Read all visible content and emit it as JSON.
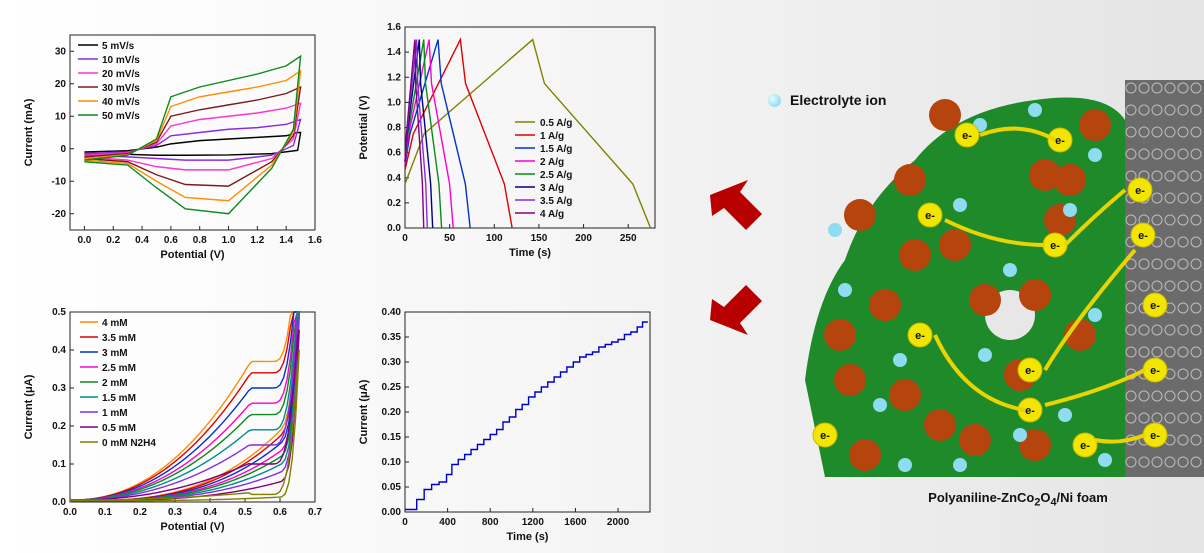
{
  "charts": [
    {
      "type": "line",
      "xlabel": "Potential (V)",
      "ylabel": "Current (mA)",
      "xlim": [
        -0.1,
        1.6
      ],
      "ylim": [
        -25,
        35
      ],
      "xticks": [
        0.0,
        0.2,
        0.4,
        0.6,
        0.8,
        1.0,
        1.2,
        1.4,
        1.6
      ],
      "yticks": [
        -20,
        -10,
        0,
        10,
        20,
        30
      ],
      "xtick_labels": [
        "0.0",
        "0.2",
        "0.4",
        "0.6",
        "0.8",
        "1.0",
        "1.2",
        "1.4",
        "1.6"
      ],
      "ytick_labels": [
        "-20",
        "-10",
        "0",
        "10",
        "20",
        "30"
      ],
      "legend_position": "top-left",
      "series": [
        {
          "name": "5 mV/s",
          "color": "#000000",
          "anodic": [
            [
              0,
              -1
            ],
            [
              0.3,
              -0.6
            ],
            [
              0.5,
              0.5
            ],
            [
              0.6,
              1.5
            ],
            [
              0.8,
              2.5
            ],
            [
              1.0,
              3.0
            ],
            [
              1.2,
              3.5
            ],
            [
              1.4,
              4.0
            ],
            [
              1.48,
              5.0
            ],
            [
              1.5,
              5
            ]
          ],
          "cathodic": [
            [
              1.5,
              5
            ],
            [
              1.48,
              -0.5
            ],
            [
              1.3,
              -1.5
            ],
            [
              1.0,
              -1.9
            ],
            [
              0.7,
              -2.0
            ],
            [
              0.5,
              -2.0
            ],
            [
              0.3,
              -1.7
            ],
            [
              0,
              -1.5
            ]
          ]
        },
        {
          "name": "10 mV/s",
          "color": "#8a2be2",
          "anodic": [
            [
              0,
              -1.5
            ],
            [
              0.3,
              -1
            ],
            [
              0.5,
              1
            ],
            [
              0.6,
              4
            ],
            [
              0.8,
              5
            ],
            [
              1.0,
              6
            ],
            [
              1.2,
              6.5
            ],
            [
              1.4,
              7.5
            ],
            [
              1.5,
              9
            ]
          ],
          "cathodic": [
            [
              1.5,
              9
            ],
            [
              1.45,
              1
            ],
            [
              1.3,
              -2
            ],
            [
              1.0,
              -3.5
            ],
            [
              0.7,
              -3.5
            ],
            [
              0.5,
              -3
            ],
            [
              0.3,
              -2.5
            ],
            [
              0,
              -2
            ]
          ]
        },
        {
          "name": "20 mV/s",
          "color": "#ff33cc",
          "anodic": [
            [
              0,
              -2
            ],
            [
              0.3,
              -1.2
            ],
            [
              0.5,
              1.5
            ],
            [
              0.6,
              7
            ],
            [
              0.8,
              9
            ],
            [
              1.0,
              10
            ],
            [
              1.2,
              11
            ],
            [
              1.4,
              12.5
            ],
            [
              1.5,
              14
            ]
          ],
          "cathodic": [
            [
              1.5,
              14
            ],
            [
              1.45,
              3
            ],
            [
              1.3,
              -3
            ],
            [
              1.0,
              -6.5
            ],
            [
              0.7,
              -6.5
            ],
            [
              0.5,
              -5.5
            ],
            [
              0.3,
              -3.5
            ],
            [
              0,
              -2.5
            ]
          ]
        },
        {
          "name": "30 mV/s",
          "color": "#7b1a1a",
          "anodic": [
            [
              0,
              -2.5
            ],
            [
              0.3,
              -1.5
            ],
            [
              0.5,
              2
            ],
            [
              0.6,
              10
            ],
            [
              0.8,
              12
            ],
            [
              1.0,
              13.5
            ],
            [
              1.2,
              15
            ],
            [
              1.4,
              17
            ],
            [
              1.5,
              19
            ]
          ],
          "cathodic": [
            [
              1.5,
              19
            ],
            [
              1.45,
              4
            ],
            [
              1.3,
              -4
            ],
            [
              1.0,
              -11.5
            ],
            [
              0.7,
              -11
            ],
            [
              0.5,
              -8
            ],
            [
              0.3,
              -4
            ],
            [
              0,
              -3
            ]
          ]
        },
        {
          "name": "40 mV/s",
          "color": "#ff8c00",
          "anodic": [
            [
              0,
              -3
            ],
            [
              0.3,
              -1.8
            ],
            [
              0.5,
              2.5
            ],
            [
              0.6,
              13
            ],
            [
              0.8,
              16
            ],
            [
              1.0,
              17.5
            ],
            [
              1.2,
              19
            ],
            [
              1.4,
              21
            ],
            [
              1.5,
              24
            ]
          ],
          "cathodic": [
            [
              1.5,
              24
            ],
            [
              1.45,
              5
            ],
            [
              1.3,
              -5
            ],
            [
              1.0,
              -16
            ],
            [
              0.7,
              -15
            ],
            [
              0.5,
              -10
            ],
            [
              0.3,
              -4.5
            ],
            [
              0,
              -3.5
            ]
          ]
        },
        {
          "name": "50 mV/s",
          "color": "#0a8a1a",
          "anodic": [
            [
              0,
              -3.5
            ],
            [
              0.3,
              -2
            ],
            [
              0.5,
              3
            ],
            [
              0.6,
              16
            ],
            [
              0.8,
              19
            ],
            [
              1.0,
              21
            ],
            [
              1.2,
              23
            ],
            [
              1.4,
              25.5
            ],
            [
              1.5,
              28.5
            ]
          ],
          "cathodic": [
            [
              1.5,
              28.5
            ],
            [
              1.45,
              6
            ],
            [
              1.3,
              -6
            ],
            [
              1.0,
              -20
            ],
            [
              0.7,
              -18.5
            ],
            [
              0.5,
              -12
            ],
            [
              0.3,
              -5
            ],
            [
              0,
              -4
            ]
          ]
        }
      ]
    },
    {
      "type": "line",
      "xlabel": "Time (s)",
      "ylabel": "Potential (V)",
      "xlim": [
        0,
        280
      ],
      "ylim": [
        0,
        1.6
      ],
      "xticks": [
        0,
        50,
        100,
        150,
        200,
        250
      ],
      "yticks": [
        0.0,
        0.2,
        0.4,
        0.6,
        0.8,
        1.0,
        1.2,
        1.4,
        1.6
      ],
      "xtick_labels": [
        "0",
        "50",
        "100",
        "150",
        "200",
        "250"
      ],
      "ytick_labels": [
        "0.0",
        "0.2",
        "0.4",
        "0.6",
        "0.8",
        "1.0",
        "1.2",
        "1.4",
        "1.6"
      ],
      "legend_position": "bottom-right",
      "series": [
        {
          "name": "0.5 A/g",
          "color": "#808000",
          "peak": 143,
          "end": 275
        },
        {
          "name": "1 A/g",
          "color": "#e00000",
          "peak": 62,
          "end": 120
        },
        {
          "name": "1.5 A/g",
          "color": "#0033cc",
          "peak": 37,
          "end": 73
        },
        {
          "name": "2 A/g",
          "color": "#ff00cc",
          "peak": 27,
          "end": 54
        },
        {
          "name": "2.5 A/g",
          "color": "#0a8a1a",
          "peak": 21,
          "end": 41
        },
        {
          "name": "3 A/g",
          "color": "#000080",
          "peak": 16,
          "end": 31
        },
        {
          "name": "3.5 A/g",
          "color": "#8a2be2",
          "peak": 13,
          "end": 25
        },
        {
          "name": "4 A/g",
          "color": "#800080",
          "peak": 11,
          "end": 21
        }
      ]
    },
    {
      "type": "line",
      "xlabel": "Potential (V)",
      "ylabel": "Current (μA)",
      "xlim": [
        0,
        0.7
      ],
      "ylim": [
        0,
        0.5
      ],
      "xticks": [
        0.0,
        0.1,
        0.2,
        0.3,
        0.4,
        0.5,
        0.6,
        0.7
      ],
      "yticks": [
        0.0,
        0.1,
        0.2,
        0.3,
        0.4,
        0.5
      ],
      "xtick_labels": [
        "0.0",
        "0.1",
        "0.2",
        "0.3",
        "0.4",
        "0.5",
        "0.6",
        "0.7"
      ],
      "ytick_labels": [
        "0.0",
        "0.1",
        "0.2",
        "0.3",
        "0.4",
        "0.5"
      ],
      "legend_position": "top-left",
      "series": [
        {
          "name": "4 mM",
          "color": "#ff8c00",
          "plateau": 0.37
        },
        {
          "name": "3.5 mM",
          "color": "#e00000",
          "plateau": 0.34
        },
        {
          "name": "3 mM",
          "color": "#0033cc",
          "plateau": 0.3
        },
        {
          "name": "2.5 mM",
          "color": "#ff00cc",
          "plateau": 0.26
        },
        {
          "name": "2 mM",
          "color": "#0a8a1a",
          "plateau": 0.23
        },
        {
          "name": "1.5 mM",
          "color": "#008b8b",
          "plateau": 0.19
        },
        {
          "name": "1 mM",
          "color": "#8a2be2",
          "plateau": 0.15
        },
        {
          "name": "0.5 mM",
          "color": "#800080",
          "plateau": 0.1
        },
        {
          "name": "0 mM N2H4",
          "color": "#808000",
          "plateau": 0.02
        }
      ]
    },
    {
      "type": "line",
      "xlabel": "Time (s)",
      "ylabel": "Current (μA)",
      "xlim": [
        0,
        2300
      ],
      "ylim": [
        0,
        0.4
      ],
      "xticks": [
        0,
        400,
        800,
        1200,
        1600,
        2000
      ],
      "yticks": [
        0.0,
        0.05,
        0.1,
        0.15,
        0.2,
        0.25,
        0.3,
        0.35,
        0.4
      ],
      "xtick_labels": [
        "0",
        "400",
        "800",
        "1200",
        "1600",
        "2000"
      ],
      "ytick_labels": [
        "0.00",
        "0.05",
        "0.10",
        "0.15",
        "0.20",
        "0.25",
        "0.30",
        "0.35",
        "0.40"
      ],
      "series": [
        {
          "color": "#0000cc",
          "steps": [
            [
              0,
              0.005
            ],
            [
              100,
              0.005
            ],
            [
              110,
              0.025
            ],
            [
              180,
              0.045
            ],
            [
              250,
              0.055
            ],
            [
              320,
              0.06
            ],
            [
              390,
              0.075
            ],
            [
              440,
              0.095
            ],
            [
              500,
              0.105
            ],
            [
              560,
              0.115
            ],
            [
              620,
              0.125
            ],
            [
              680,
              0.135
            ],
            [
              740,
              0.145
            ],
            [
              800,
              0.155
            ],
            [
              860,
              0.165
            ],
            [
              920,
              0.18
            ],
            [
              980,
              0.19
            ],
            [
              1040,
              0.205
            ],
            [
              1100,
              0.215
            ],
            [
              1160,
              0.23
            ],
            [
              1220,
              0.24
            ],
            [
              1280,
              0.25
            ],
            [
              1340,
              0.26
            ],
            [
              1400,
              0.27
            ],
            [
              1460,
              0.28
            ],
            [
              1520,
              0.29
            ],
            [
              1580,
              0.3
            ],
            [
              1640,
              0.31
            ],
            [
              1700,
              0.315
            ],
            [
              1760,
              0.32
            ],
            [
              1820,
              0.33
            ],
            [
              1880,
              0.335
            ],
            [
              1940,
              0.34
            ],
            [
              2000,
              0.345
            ],
            [
              2060,
              0.355
            ],
            [
              2120,
              0.36
            ],
            [
              2180,
              0.37
            ],
            [
              2230,
              0.38
            ],
            [
              2280,
              0.38
            ]
          ]
        }
      ]
    }
  ],
  "illustration": {
    "legend_label": "Electrolyte ion",
    "electron_label": "e-",
    "caption_prefix": "Polyaniline-ZnCo",
    "caption_sub1": "2",
    "caption_mid": "O",
    "caption_sub2": "4",
    "caption_suffix": "/Ni foam",
    "colors": {
      "green": "#1f8a2a",
      "ball": "#b5440d",
      "electron": "#f2e600",
      "ion": "#8fdcf2",
      "arrow": "#cc0000"
    }
  }
}
